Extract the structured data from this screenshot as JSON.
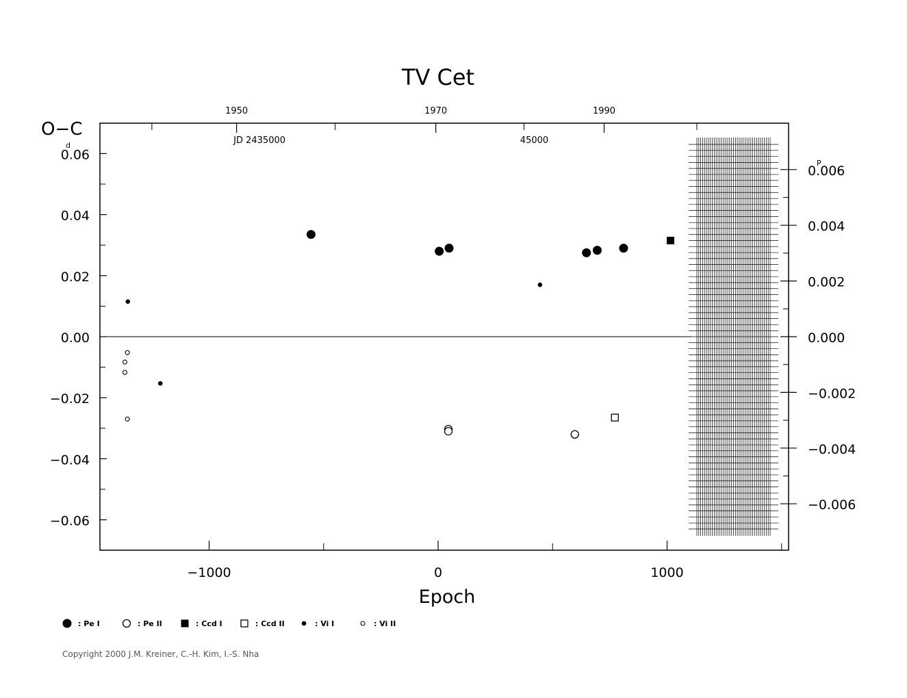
{
  "chart_data": {
    "type": "scatter",
    "title": "TV  Cet",
    "xlabel": "Epoch",
    "ylabel": "O−C",
    "y_unit_superscript": "d",
    "y2_unit_superscript": "P",
    "xlim": [
      -1480,
      1540
    ],
    "ylim": [
      -0.07,
      0.07
    ],
    "x_ticks": [
      -1000,
      0,
      1000
    ],
    "x_tick_labels": [
      "−1000",
      "0",
      "1000"
    ],
    "y_ticks": [
      -0.06,
      -0.04,
      -0.02,
      0.0,
      0.02,
      0.04,
      0.06
    ],
    "y_tick_labels": [
      "−0.06",
      "−0.04",
      "−0.02",
      "0.00",
      "0.02",
      "0.04",
      "0.06"
    ],
    "y2_ticks": [
      -0.006,
      -0.004,
      -0.002,
      0.0,
      0.002,
      0.004,
      0.006
    ],
    "y2_tick_labels": [
      "−0.006",
      "−0.004",
      "−0.002",
      "0.000",
      "0.002",
      "0.004",
      "0.006"
    ],
    "top_year_labels": [
      "1950",
      "1970",
      "1990"
    ],
    "top_year_epochs": [
      -880,
      -10,
      725
    ],
    "jd_labels": [
      "JD  2435000",
      "45000"
    ],
    "jd_label_epochs": [
      -780,
      420
    ],
    "series": [
      {
        "name": "Pe I",
        "marker": "filled-circle-large",
        "points": [
          [
            -555,
            0.0335
          ],
          [
            5,
            0.028
          ],
          [
            48,
            0.029
          ],
          [
            648,
            0.0275
          ],
          [
            695,
            0.0283
          ],
          [
            810,
            0.029
          ]
        ]
      },
      {
        "name": "Pe II",
        "marker": "open-circle-large",
        "points": [
          [
            45,
            -0.0303
          ],
          [
            45,
            -0.031
          ],
          [
            597,
            -0.032
          ]
        ]
      },
      {
        "name": "Ccd I",
        "marker": "filled-square",
        "points": [
          [
            1015,
            0.0315
          ]
        ]
      },
      {
        "name": "Ccd II",
        "marker": "open-square",
        "points": [
          [
            772,
            -0.0265
          ]
        ]
      },
      {
        "name": "Vi I",
        "marker": "filled-circle-small",
        "points": [
          [
            -1355,
            0.0115
          ],
          [
            -1213,
            -0.0153
          ],
          [
            445,
            0.017
          ]
        ]
      },
      {
        "name": "Vi II",
        "marker": "open-circle-small",
        "points": [
          [
            -1357,
            -0.0052
          ],
          [
            -1368,
            -0.0083
          ],
          [
            -1368,
            -0.0117
          ],
          [
            -1357,
            -0.027
          ]
        ]
      }
    ],
    "legend": [
      {
        "marker": "filled-circle-large",
        "label": ": Pe  I"
      },
      {
        "marker": "open-circle-large",
        "label": ": Pe  II"
      },
      {
        "marker": "filled-square",
        "label": ": Ccd  I"
      },
      {
        "marker": "open-square",
        "label": ": Ccd  II"
      },
      {
        "marker": "filled-circle-small",
        "label": ": Vi  I"
      },
      {
        "marker": "open-circle-small",
        "label": ": Vi  II"
      }
    ],
    "hatched_region_epoch_range": [
      1130,
      1450
    ],
    "hatched_region_y_range": [
      -0.063,
      0.063
    ]
  },
  "copyright": "Copyright 2000 J.M. Kreiner, C.-H. Kim, I.-S. Nha"
}
